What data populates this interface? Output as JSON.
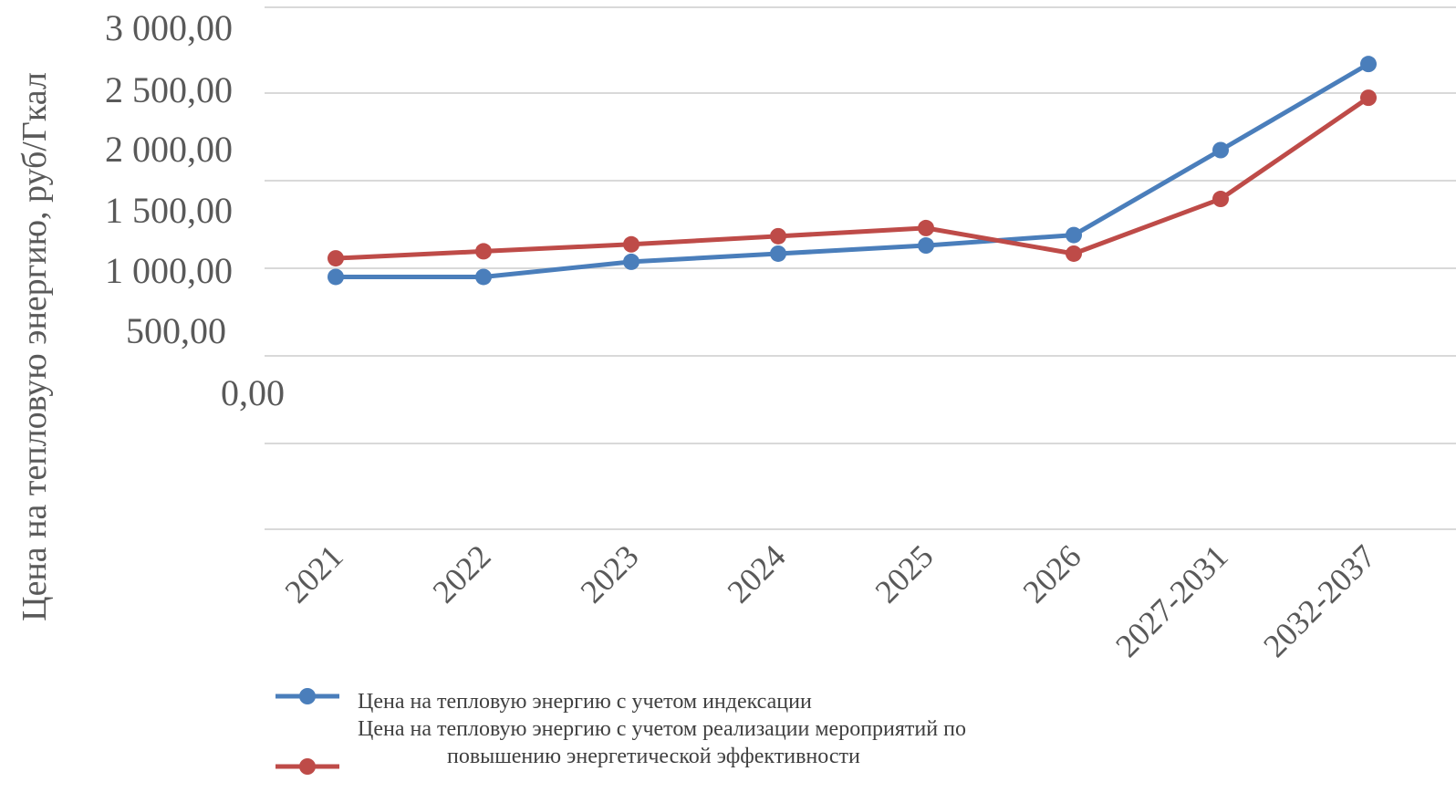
{
  "chart_data": {
    "type": "line",
    "categories": [
      "2021",
      "2022",
      "2023",
      "2024",
      "2025",
      "2026",
      "2027-2031",
      "2032-2037"
    ],
    "ylabel": "Цена на тепловую энергию, руб/Гкал",
    "xlabel": "",
    "ytick_labels": [
      "3 000,00",
      "2 500,00",
      "2 000,00",
      "1 500,00",
      "1 000,00",
      "500,00",
      "0,00"
    ],
    "grid": true,
    "legend_position": "bottom-left",
    "series": [
      {
        "name": "Цена на тепловую энергию с учетом индексации",
        "color": "#4a7ebb",
        "values": [
          910,
          910,
          1040,
          1110,
          1180,
          1270,
          2000,
          2740
        ]
      },
      {
        "name": "Цена на тепловую энергию с учетом реализации мероприятий по повышению энергетической эффективности",
        "color": "#be4b48",
        "values": [
          1070,
          1130,
          1190,
          1260,
          1330,
          1110,
          1580,
          2450
        ]
      }
    ],
    "legend_lines": [
      [
        "Цена на тепловую энергию с учетом индексации"
      ],
      [
        "Цена на тепловую энергию с учетом реализации мероприятий по",
        "повышению энергетической эффективности"
      ]
    ]
  }
}
